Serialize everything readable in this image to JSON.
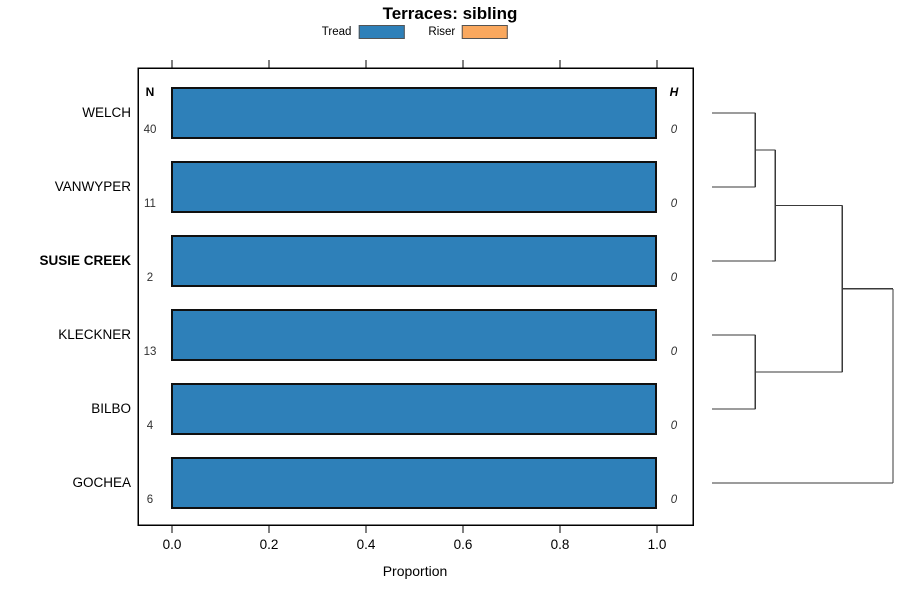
{
  "title": "Terraces: sibling",
  "legend": {
    "items": [
      {
        "label": "Tread",
        "color": "#2E80B9"
      },
      {
        "label": "Riser",
        "color": "#FAA85E"
      }
    ]
  },
  "columns": {
    "n_header": "N",
    "h_header": "H"
  },
  "axis": {
    "label": "Proportion",
    "ticks": [
      "0.0",
      "0.2",
      "0.4",
      "0.6",
      "0.8",
      "1.0"
    ],
    "tick_values": [
      0,
      0.2,
      0.4,
      0.6,
      0.8,
      1.0
    ]
  },
  "chart_data": {
    "type": "bar",
    "orientation": "horizontal",
    "title": "Terraces: sibling",
    "xlabel": "Proportion",
    "xlim": [
      0,
      1
    ],
    "categories": [
      "WELCH",
      "VANWYPER",
      "SUSIE CREEK",
      "KLECKNER",
      "BILBO",
      "GOCHEA"
    ],
    "emphasized_category": "SUSIE CREEK",
    "series": [
      {
        "name": "Tread",
        "color": "#2E80B9",
        "values": [
          1.0,
          1.0,
          1.0,
          1.0,
          1.0,
          1.0
        ]
      },
      {
        "name": "Riser",
        "color": "#FAA85E",
        "values": [
          0,
          0,
          0,
          0,
          0,
          0
        ]
      }
    ],
    "n_values": [
      40,
      11,
      2,
      13,
      4,
      6
    ],
    "h_values": [
      0,
      0,
      0,
      0,
      0,
      0
    ],
    "dendrogram": {
      "leaf_order": [
        "WELCH",
        "VANWYPER",
        "SUSIE CREEK",
        "KLECKNER",
        "BILBO",
        "GOCHEA"
      ],
      "merges": [
        {
          "a": "WELCH",
          "b": "VANWYPER",
          "height": 0.24
        },
        {
          "a": "merge-0",
          "b": "SUSIE CREEK",
          "height": 0.35
        },
        {
          "a": "KLECKNER",
          "b": "BILBO",
          "height": 0.24
        },
        {
          "a": "merge-1",
          "b": "merge-2",
          "height": 0.72
        },
        {
          "a": "merge-3",
          "b": "GOCHEA",
          "height": 1.0
        }
      ]
    }
  }
}
